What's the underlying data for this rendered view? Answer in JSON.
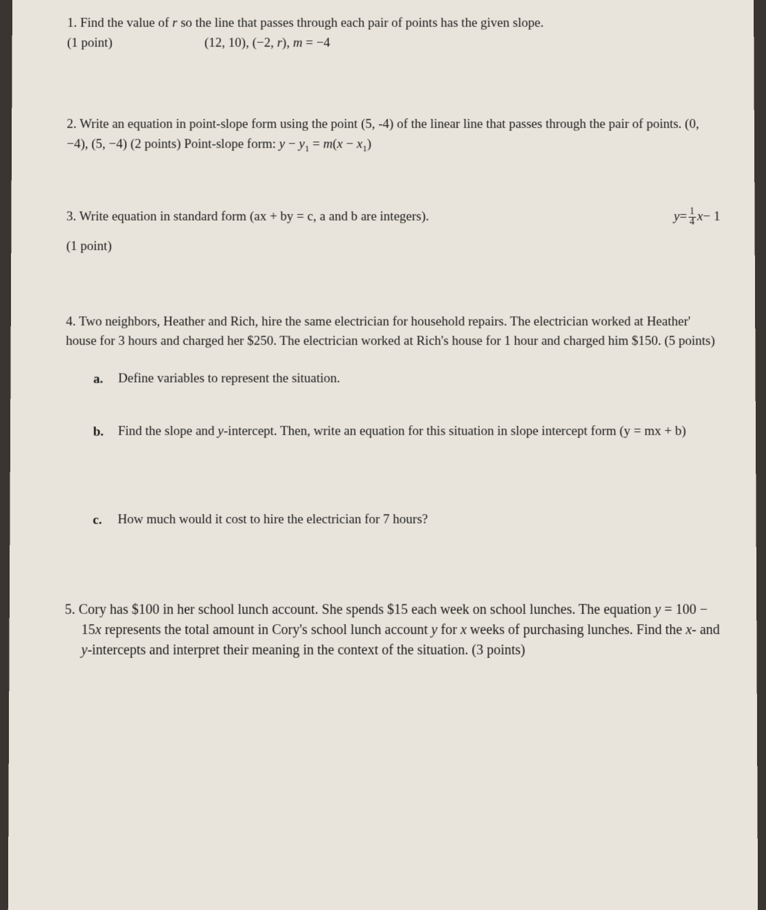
{
  "page": {
    "background_color": "#e8e4db",
    "outer_background": "#3a3530",
    "text_color": "#1a1a1a",
    "font_family": "Times New Roman",
    "base_fontsize": 19
  },
  "q1": {
    "text": "1. Find the value of ",
    "var_r": "r",
    "text2": " so the line that passes through each pair of points has the given slope.",
    "points": "(1 point)",
    "data": "(12, 10), (−2, ",
    "var_r2": "r",
    "data2": "), ",
    "var_m": "m",
    "data3": " = −4"
  },
  "q2": {
    "text": "2. Write an equation in point-slope form using the point (5, -4) of the linear line that passes through the pair of points. (0, −4), (5, −4) (2 points)  Point-slope form:  ",
    "formula_y": "y",
    "formula_dash1": " − ",
    "formula_y1": "y",
    "formula_sub1": "1",
    "formula_eq": " = ",
    "formula_m": "m",
    "formula_paren": "(",
    "formula_x": "x",
    "formula_dash2": " − ",
    "formula_x1": "x",
    "formula_sub2": "1",
    "formula_close": ")"
  },
  "q3": {
    "text": "3.  Write equation in standard form (ax + by = c, a and b are integers).",
    "eq_y": "y",
    "eq_equals": " = ",
    "frac_num": "1",
    "frac_den": "4",
    "eq_x": "x",
    "eq_minus": " − 1",
    "points": "(1 point)"
  },
  "q4": {
    "intro": "4. Two neighbors, Heather and Rich, hire the same electrician for household repairs. The electrician worked at Heather' house for 3 hours and charged her $250. The electrician worked at Rich's house for 1 hour and charged him $150. (5 points)",
    "a_label": "a.",
    "a_text": "Define variables to represent the situation.",
    "b_label": "b.",
    "b_text1": "Find the slope and ",
    "b_var_y": "y",
    "b_text2": "-intercept. Then, write an equation for this situation in slope intercept form (y = mx + b)",
    "c_label": "c.",
    "c_text": "How much would it cost to hire the electrician for 7 hours?"
  },
  "q5": {
    "text1": "5. Cory has $100 in her school lunch account. She spends $15 each week on school lunches. The equation ",
    "var_y": "y",
    "text2": " = 100 − 15",
    "var_x": "x",
    "text3": " represents the total amount in Cory's school lunch account ",
    "var_y2": "y",
    "text4": " for ",
    "var_x2": "x",
    "text5": " weeks of purchasing lunches. Find the ",
    "var_x3": "x",
    "text6": "- and ",
    "var_y3": "y",
    "text7": "-intercepts and interpret their meaning in the context of the situation.  (3 points)"
  }
}
